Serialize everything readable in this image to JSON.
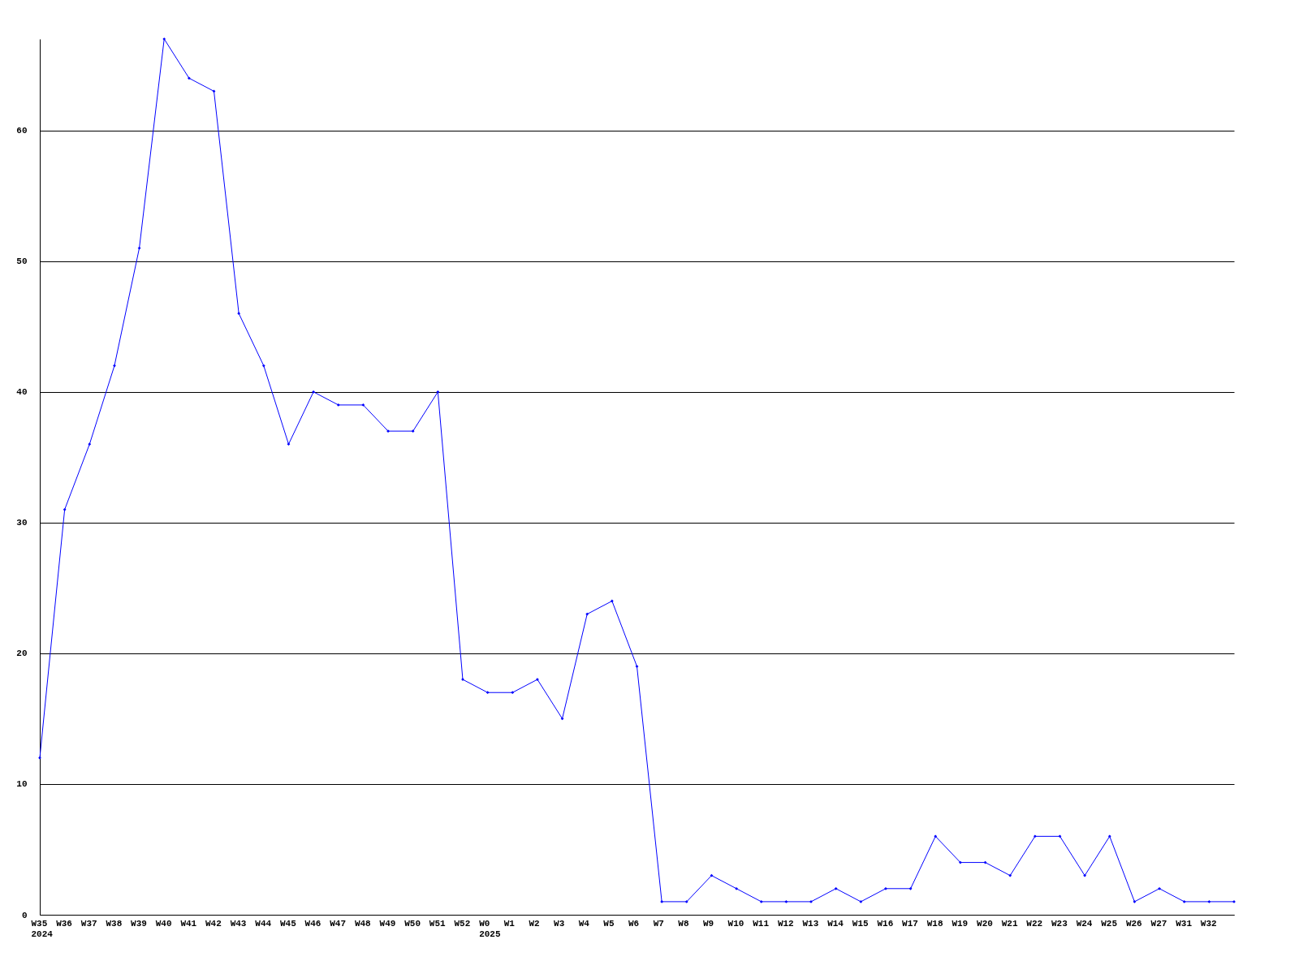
{
  "chart_data": {
    "type": "line",
    "categories": [
      "W35\n2024",
      "W36",
      "W37",
      "W38",
      "W39",
      "W40",
      "W41",
      "W42",
      "W43",
      "W44",
      "W45",
      "W46",
      "W47",
      "W48",
      "W49",
      "W50",
      "W51",
      "W52",
      "W0\n2025",
      "W1",
      "W2",
      "W3",
      "W4",
      "W5",
      "W6",
      "W7",
      "W8",
      "W9",
      "W10",
      "W11",
      "W12",
      "W13",
      "W14",
      "W15",
      "W16",
      "W17",
      "W18",
      "W19",
      "W20",
      "W21",
      "W22",
      "W23",
      "W24",
      "W25",
      "W26",
      "W27",
      "W31",
      "W32",
      null
    ],
    "series": [
      {
        "color": "#0000ff",
        "values": [
          12,
          31,
          36,
          42,
          51,
          67,
          64,
          63,
          46,
          42,
          36,
          40,
          39,
          39,
          37,
          37,
          40,
          18,
          17,
          17,
          18,
          15,
          23,
          24,
          19,
          1,
          1,
          3,
          2,
          1,
          1,
          1,
          2,
          1,
          2,
          2,
          6,
          4,
          4,
          3,
          6,
          6,
          3,
          6,
          1,
          2,
          1,
          1,
          1
        ]
      }
    ],
    "ylim": [
      0,
      67
    ],
    "yticks": [
      0,
      10,
      20,
      30,
      40,
      50,
      60
    ],
    "grid": "y",
    "marker": "diamond",
    "line_style": "solid"
  }
}
